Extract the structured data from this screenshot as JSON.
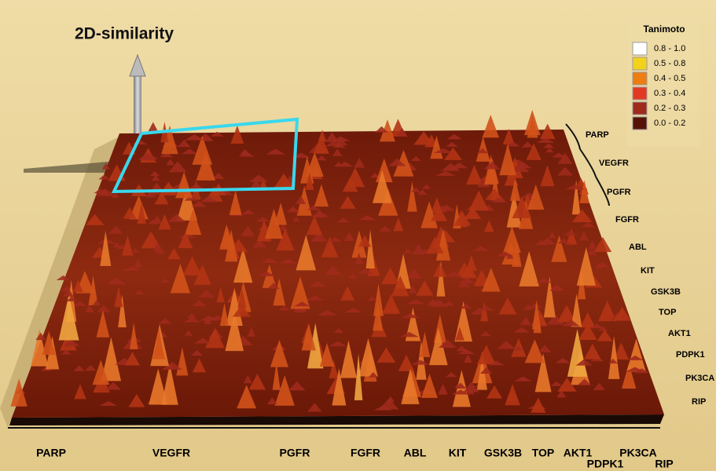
{
  "chart_data": {
    "type": "surface3d",
    "title": "2D-similarity",
    "legend": {
      "title": "Tanimoto",
      "entries": [
        {
          "label": "0.8 - 1.0",
          "color": "#ffffff"
        },
        {
          "label": "0.5 - 0.8",
          "color": "#f3d21c"
        },
        {
          "label": "0.4 - 0.5",
          "color": "#ee7d12"
        },
        {
          "label": "0.3 - 0.4",
          "color": "#e23a22"
        },
        {
          "label": "0.2 - 0.3",
          "color": "#9e2a1c"
        },
        {
          "label": "0.0 - 0.2",
          "color": "#571208"
        }
      ]
    },
    "x_groups": [
      "PARP",
      "VEGFR",
      "PGFR",
      "FGFR",
      "ABL",
      "KIT",
      "GSK3B",
      "TOP",
      "AKT1",
      "PDPK1",
      "PK3CA",
      "RIP"
    ],
    "y_groups": [
      "PARP",
      "VEGFR",
      "PGFR",
      "FGFR",
      "ABL",
      "KIT",
      "GSK3B",
      "TOP",
      "AKT1",
      "PDPK1",
      "PK3CA",
      "RIP"
    ]
  }
}
